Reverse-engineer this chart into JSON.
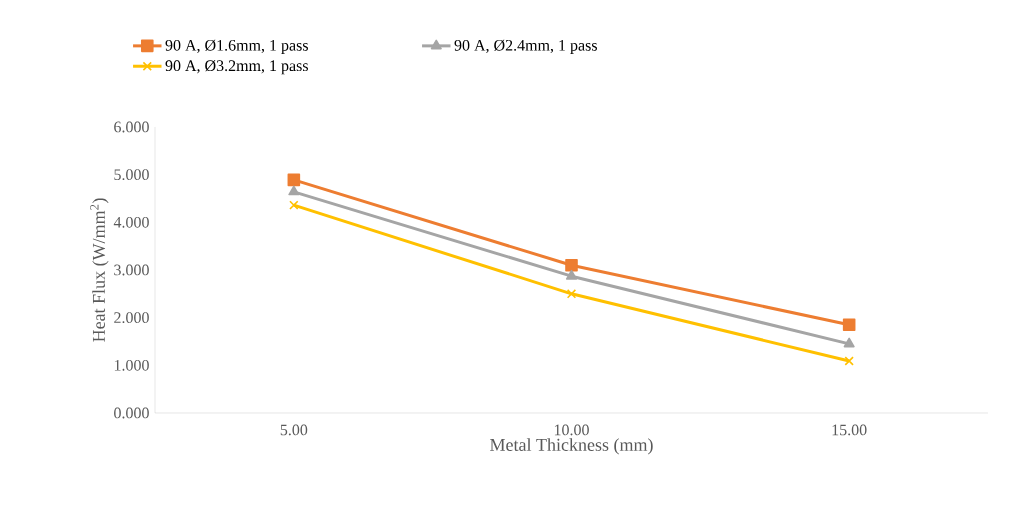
{
  "chart_data": {
    "type": "line",
    "xlabel": "Metal Thickness (mm)",
    "ylabel": "Heat Flux (W/mm$^{2}$)",
    "x": [
      5,
      10,
      15
    ],
    "series": [
      {
        "name": "90 A, Ø1.6mm, 1 pass",
        "color": "#ed7d31",
        "marker": "square",
        "values": [
          4.89,
          3.1,
          1.85
        ]
      },
      {
        "name": "90 A, Ø2.4mm, 1 pass",
        "color": "#a5a5a5",
        "marker": "triangle",
        "values": [
          4.64,
          2.87,
          1.45
        ]
      },
      {
        "name": "90 A, Ø3.2mm, 1 pass",
        "color": "#ffc000",
        "marker": "cross",
        "values": [
          4.36,
          2.5,
          1.09
        ]
      }
    ],
    "xlim": [
      2.5,
      17.5
    ],
    "xticks": [
      {
        "value": 5,
        "label": "5.00"
      },
      {
        "value": 10,
        "label": "10.00"
      },
      {
        "value": 15,
        "label": "15.00"
      }
    ],
    "ylim": [
      0,
      6
    ],
    "yticks": [
      {
        "value": 0,
        "label": "0.000"
      },
      {
        "value": 1,
        "label": "1.000"
      },
      {
        "value": 2,
        "label": "2.000"
      },
      {
        "value": 3,
        "label": "3.000"
      },
      {
        "value": 4,
        "label": "4.000"
      },
      {
        "value": 5,
        "label": "5.000"
      },
      {
        "value": 6,
        "label": "6.000"
      }
    ],
    "grid": false,
    "legend": "top",
    "line_style": "solid"
  }
}
